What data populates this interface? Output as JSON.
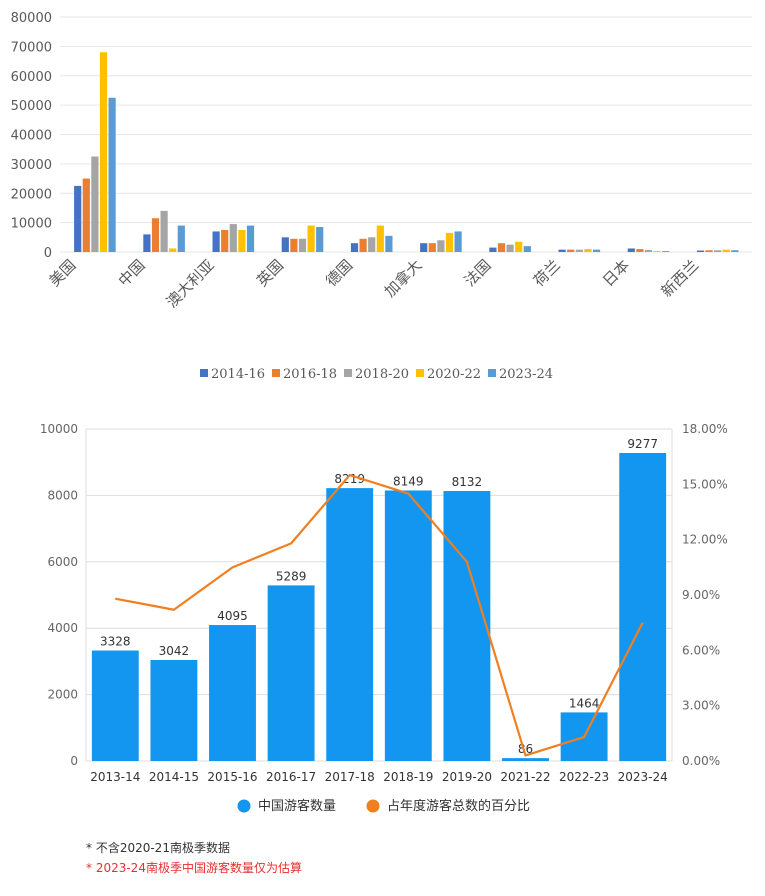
{
  "chart_data": [
    {
      "type": "bar",
      "categories": [
        "美国",
        "中国",
        "澳大利亚",
        "英国",
        "德国",
        "加拿大",
        "法国",
        "荷兰",
        "日本",
        "新西兰"
      ],
      "series": [
        {
          "name": "2014-16",
          "color": "#4472c4",
          "values": [
            22500,
            6000,
            7000,
            5000,
            3000,
            3000,
            1500,
            800,
            1200,
            500
          ]
        },
        {
          "name": "2016-18",
          "color": "#ed7d31",
          "values": [
            25000,
            11500,
            7500,
            4500,
            4500,
            3000,
            3000,
            800,
            1000,
            600
          ]
        },
        {
          "name": "2018-20",
          "color": "#a5a5a5",
          "values": [
            32500,
            14000,
            9500,
            4500,
            5000,
            4000,
            2500,
            800,
            700,
            600
          ]
        },
        {
          "name": "2020-22",
          "color": "#ffc000",
          "values": [
            68000,
            1200,
            7500,
            9000,
            9000,
            6500,
            3500,
            1000,
            300,
            800
          ]
        },
        {
          "name": "2023-24",
          "color": "#5b9bd5",
          "values": [
            52500,
            9000,
            9000,
            8500,
            5500,
            7000,
            2000,
            800,
            300,
            600
          ]
        }
      ],
      "yticks": [
        "0",
        "10000",
        "20000",
        "30000",
        "40000",
        "50000",
        "60000",
        "70000",
        "80000"
      ],
      "ylim": [
        0,
        80000
      ],
      "legend_position": "bottom"
    },
    {
      "type": "bar+line",
      "categories": [
        "2013-14",
        "2014-15",
        "2015-16",
        "2016-17",
        "2017-18",
        "2018-19",
        "2019-20",
        "2021-22",
        "2022-23",
        "2023-24"
      ],
      "bar_series": {
        "name": "中国游客数量",
        "color": "#1296ef",
        "values": [
          3328,
          3042,
          4095,
          5289,
          8219,
          8149,
          8132,
          86,
          1464,
          9277
        ]
      },
      "bar_labels": [
        "3328",
        "3042",
        "4095",
        "5289",
        "8219",
        "8149",
        "8132",
        "86",
        "1464",
        "9277"
      ],
      "line_series": {
        "name": "占年度游客总数的百分比",
        "color": "#f07f20",
        "values": [
          8.8,
          8.2,
          10.5,
          11.8,
          15.5,
          14.5,
          10.8,
          0.3,
          1.3,
          7.5
        ]
      },
      "yticks_left": [
        "0",
        "2000",
        "4000",
        "6000",
        "8000",
        "10000"
      ],
      "ylim_left": [
        0,
        10000
      ],
      "yticks_right": [
        "0.00%",
        "3.00%",
        "6.00%",
        "9.00%",
        "12.00%",
        "15.00%",
        "18.00%"
      ],
      "ylim_right": [
        0,
        18
      ],
      "legend_position": "bottom"
    }
  ],
  "notes": {
    "note1": "* 不含2020-21南极季数据",
    "note2": "* 2023-24南极季中国游客数量仅为估算"
  }
}
